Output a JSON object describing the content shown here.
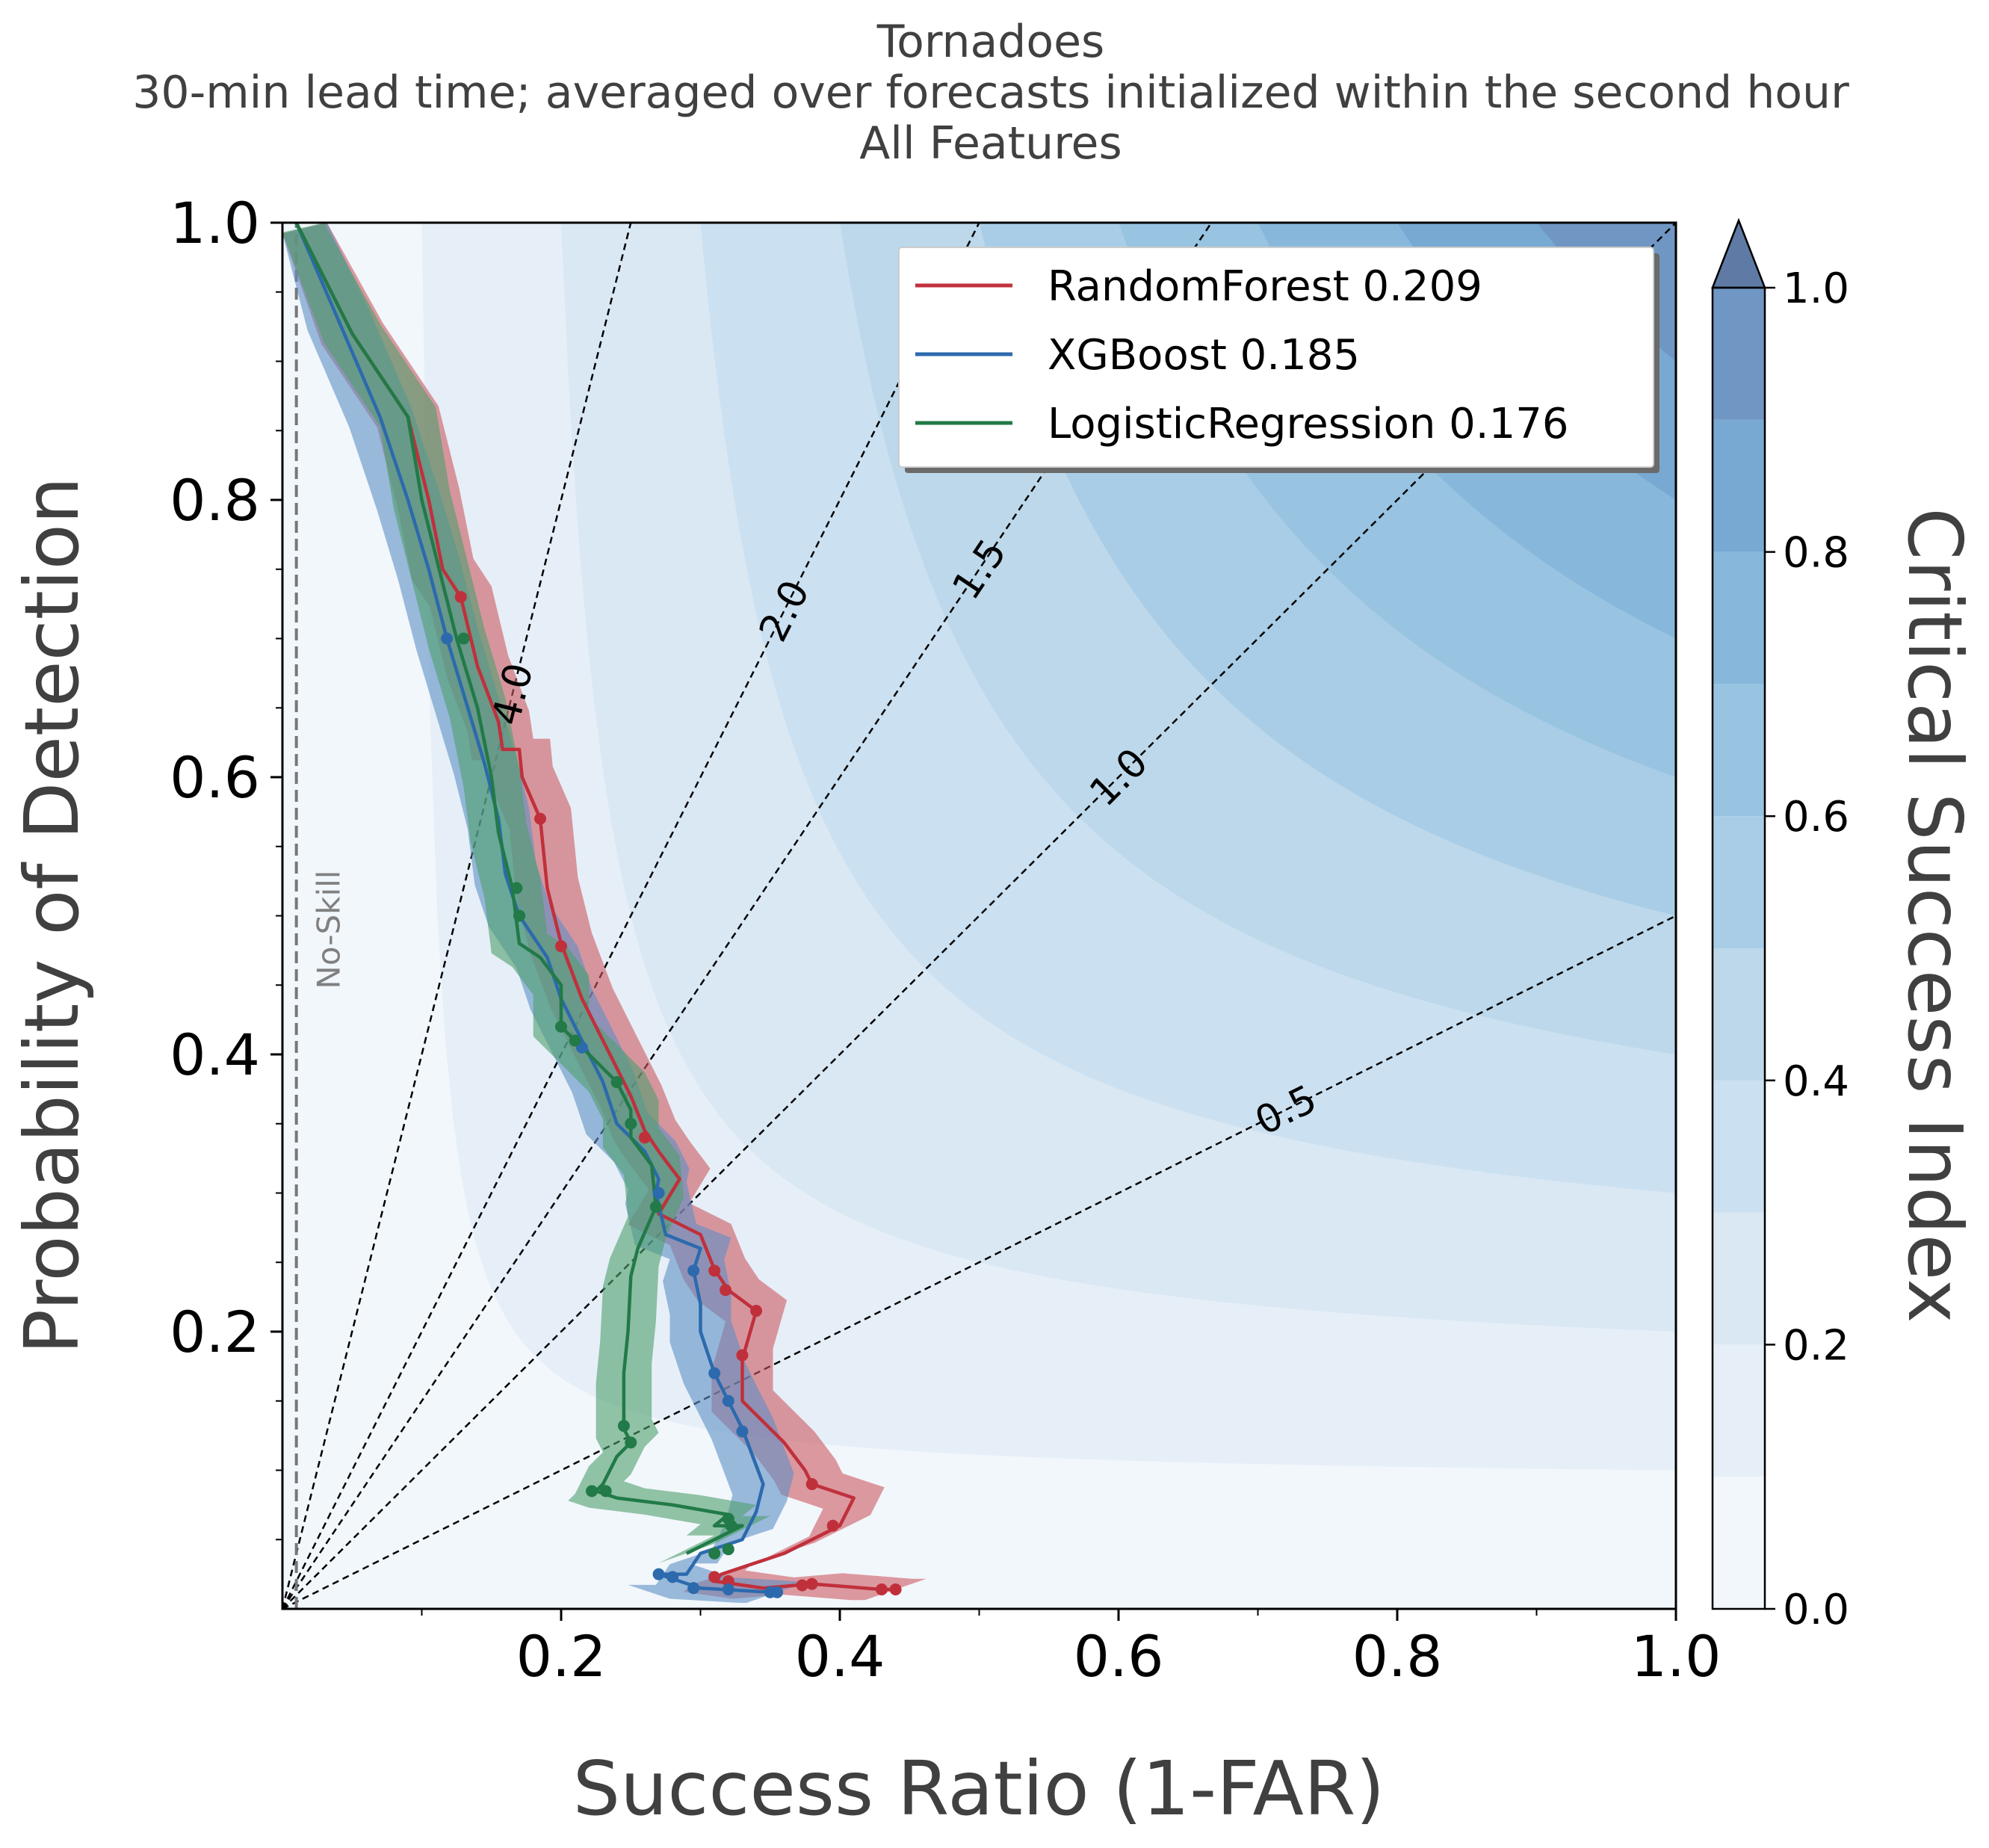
{
  "chart_data": {
    "type": "line",
    "title": [
      "Tornadoes",
      "30-min lead time; averaged over forecasts initialized within the second hour",
      "All Features"
    ],
    "xlabel": "Success Ratio (1-FAR)",
    "ylabel": "Probability of Detection",
    "xlim": [
      0,
      1
    ],
    "ylim": [
      0,
      1
    ],
    "x_tick_labels": [
      "0.2",
      "0.4",
      "0.6",
      "0.8",
      "1.0"
    ],
    "x_ticks": [
      0.2,
      0.4,
      0.6,
      0.8,
      1.0
    ],
    "y_tick_labels": [
      "0.2",
      "0.4",
      "0.6",
      "0.8",
      "1.0"
    ],
    "y_ticks": [
      0.2,
      0.4,
      0.6,
      0.8,
      1.0
    ],
    "background": {
      "field": "Critical Success Index",
      "levels": [
        0.0,
        0.1,
        0.2,
        0.3,
        0.4,
        0.5,
        0.6,
        0.7,
        0.8,
        0.9,
        1.0
      ],
      "colors": [
        "#f2f7fc",
        "#e6eff8",
        "#dae8f4",
        "#cbe0f0",
        "#bcd8ea",
        "#a9cde6",
        "#98c3e1",
        "#87b8dc",
        "#77a9d3",
        "#7096c4"
      ]
    },
    "colorbar": {
      "label": "Critical Success Index",
      "tick_labels": [
        "0.0",
        "0.2",
        "0.4",
        "0.6",
        "0.8",
        "1.0"
      ],
      "ticks": [
        0,
        0.2,
        0.4,
        0.6,
        0.8,
        1.0
      ],
      "extend": "max",
      "extend_color": "#5f7aa5"
    },
    "frequency_bias_lines": [
      {
        "label": "4.0",
        "bias": 4.0,
        "label_x": 0.165
      },
      {
        "label": "2.0",
        "bias": 2.0,
        "label_x": 0.36
      },
      {
        "label": "1.5",
        "bias": 1.5,
        "label_x": 0.5
      },
      {
        "label": "1.0",
        "bias": 1.0,
        "label_x": 0.6
      },
      {
        "label": "0.5",
        "bias": 0.5,
        "label_x": 0.72
      }
    ],
    "no_skill": {
      "label": "No-Skill",
      "x": 0.01
    },
    "legend": {
      "location": "upper right"
    },
    "series": [
      {
        "name": "RandomForest 0.209",
        "color": "#c0303b",
        "band_color": "#cc5961",
        "band_width": 0.022,
        "line": [
          [
            0.01,
            1.0
          ],
          [
            0.05,
            0.92
          ],
          [
            0.09,
            0.86
          ],
          [
            0.105,
            0.8
          ],
          [
            0.115,
            0.75
          ],
          [
            0.128,
            0.73
          ],
          [
            0.14,
            0.68
          ],
          [
            0.155,
            0.64
          ],
          [
            0.158,
            0.62
          ],
          [
            0.17,
            0.62
          ],
          [
            0.172,
            0.6
          ],
          [
            0.185,
            0.57
          ],
          [
            0.19,
            0.52
          ],
          [
            0.2,
            0.48
          ],
          [
            0.215,
            0.44
          ],
          [
            0.235,
            0.4
          ],
          [
            0.25,
            0.37
          ],
          [
            0.26,
            0.345
          ],
          [
            0.27,
            0.33
          ],
          [
            0.285,
            0.31
          ],
          [
            0.27,
            0.285
          ],
          [
            0.3,
            0.27
          ],
          [
            0.31,
            0.245
          ],
          [
            0.32,
            0.23
          ],
          [
            0.34,
            0.215
          ],
          [
            0.33,
            0.18
          ],
          [
            0.33,
            0.15
          ],
          [
            0.36,
            0.12
          ],
          [
            0.375,
            0.1
          ],
          [
            0.38,
            0.09
          ],
          [
            0.41,
            0.08
          ],
          [
            0.4,
            0.06
          ],
          [
            0.36,
            0.04
          ],
          [
            0.315,
            0.025
          ],
          [
            0.31,
            0.02
          ],
          [
            0.345,
            0.015
          ],
          [
            0.38,
            0.018
          ],
          [
            0.43,
            0.014
          ],
          [
            0.44,
            0.014
          ]
        ],
        "points": [
          [
            0.128,
            0.73
          ],
          [
            0.185,
            0.57
          ],
          [
            0.2,
            0.478
          ],
          [
            0.26,
            0.34
          ],
          [
            0.31,
            0.244
          ],
          [
            0.318,
            0.23
          ],
          [
            0.34,
            0.215
          ],
          [
            0.33,
            0.183
          ],
          [
            0.38,
            0.09
          ],
          [
            0.395,
            0.06
          ],
          [
            0.31,
            0.023
          ],
          [
            0.32,
            0.02
          ],
          [
            0.373,
            0.017
          ],
          [
            0.38,
            0.018
          ],
          [
            0.43,
            0.014
          ],
          [
            0.44,
            0.014
          ]
        ]
      },
      {
        "name": "XGBoost 0.185",
        "color": "#2c6aad",
        "band_color": "#5e8fc4",
        "band_width": 0.022,
        "line": [
          [
            0.01,
            1.0
          ],
          [
            0.04,
            0.93
          ],
          [
            0.07,
            0.86
          ],
          [
            0.09,
            0.8
          ],
          [
            0.105,
            0.75
          ],
          [
            0.118,
            0.7
          ],
          [
            0.13,
            0.66
          ],
          [
            0.145,
            0.61
          ],
          [
            0.155,
            0.57
          ],
          [
            0.16,
            0.53
          ],
          [
            0.17,
            0.5
          ],
          [
            0.19,
            0.47
          ],
          [
            0.2,
            0.44
          ],
          [
            0.215,
            0.41
          ],
          [
            0.22,
            0.4
          ],
          [
            0.23,
            0.38
          ],
          [
            0.24,
            0.35
          ],
          [
            0.26,
            0.33
          ],
          [
            0.27,
            0.31
          ],
          [
            0.268,
            0.3
          ],
          [
            0.275,
            0.27
          ],
          [
            0.3,
            0.26
          ],
          [
            0.295,
            0.244
          ],
          [
            0.3,
            0.22
          ],
          [
            0.3,
            0.2
          ],
          [
            0.31,
            0.17
          ],
          [
            0.32,
            0.15
          ],
          [
            0.33,
            0.13
          ],
          [
            0.345,
            0.09
          ],
          [
            0.34,
            0.07
          ],
          [
            0.33,
            0.05
          ],
          [
            0.3,
            0.04
          ],
          [
            0.29,
            0.025
          ],
          [
            0.27,
            0.025
          ],
          [
            0.3,
            0.015
          ],
          [
            0.35,
            0.012
          ],
          [
            0.355,
            0.012
          ]
        ],
        "points": [
          [
            0.118,
            0.7
          ],
          [
            0.17,
            0.5
          ],
          [
            0.215,
            0.405
          ],
          [
            0.27,
            0.3
          ],
          [
            0.295,
            0.244
          ],
          [
            0.31,
            0.17
          ],
          [
            0.32,
            0.15
          ],
          [
            0.33,
            0.128
          ],
          [
            0.27,
            0.025
          ],
          [
            0.28,
            0.023
          ],
          [
            0.295,
            0.015
          ],
          [
            0.32,
            0.014
          ],
          [
            0.35,
            0.012
          ],
          [
            0.355,
            0.012
          ]
        ]
      },
      {
        "name": "LogisticRegression 0.176",
        "color": "#217a47",
        "band_color": "#4f9e6c",
        "band_width": 0.02,
        "line": [
          [
            0.01,
            1.0
          ],
          [
            0.05,
            0.92
          ],
          [
            0.09,
            0.86
          ],
          [
            0.1,
            0.8
          ],
          [
            0.11,
            0.76
          ],
          [
            0.125,
            0.7
          ],
          [
            0.14,
            0.65
          ],
          [
            0.15,
            0.6
          ],
          [
            0.155,
            0.56
          ],
          [
            0.165,
            0.52
          ],
          [
            0.17,
            0.48
          ],
          [
            0.185,
            0.47
          ],
          [
            0.2,
            0.45
          ],
          [
            0.2,
            0.42
          ],
          [
            0.21,
            0.41
          ],
          [
            0.24,
            0.38
          ],
          [
            0.25,
            0.36
          ],
          [
            0.25,
            0.34
          ],
          [
            0.265,
            0.32
          ],
          [
            0.268,
            0.29
          ],
          [
            0.255,
            0.26
          ],
          [
            0.25,
            0.24
          ],
          [
            0.248,
            0.2
          ],
          [
            0.245,
            0.17
          ],
          [
            0.245,
            0.13
          ],
          [
            0.25,
            0.12
          ],
          [
            0.24,
            0.11
          ],
          [
            0.23,
            0.09
          ],
          [
            0.225,
            0.085
          ],
          [
            0.24,
            0.08
          ],
          [
            0.28,
            0.075
          ],
          [
            0.32,
            0.068
          ],
          [
            0.31,
            0.06
          ],
          [
            0.33,
            0.06
          ],
          [
            0.3,
            0.045
          ],
          [
            0.29,
            0.04
          ]
        ],
        "points": [
          [
            0.13,
            0.7
          ],
          [
            0.168,
            0.52
          ],
          [
            0.17,
            0.5
          ],
          [
            0.2,
            0.42
          ],
          [
            0.21,
            0.41
          ],
          [
            0.24,
            0.38
          ],
          [
            0.25,
            0.35
          ],
          [
            0.268,
            0.29
          ],
          [
            0.245,
            0.132
          ],
          [
            0.25,
            0.12
          ],
          [
            0.222,
            0.085
          ],
          [
            0.232,
            0.085
          ],
          [
            0.32,
            0.065
          ],
          [
            0.322,
            0.06
          ],
          [
            0.32,
            0.043
          ],
          [
            0.31,
            0.04
          ]
        ]
      }
    ]
  }
}
